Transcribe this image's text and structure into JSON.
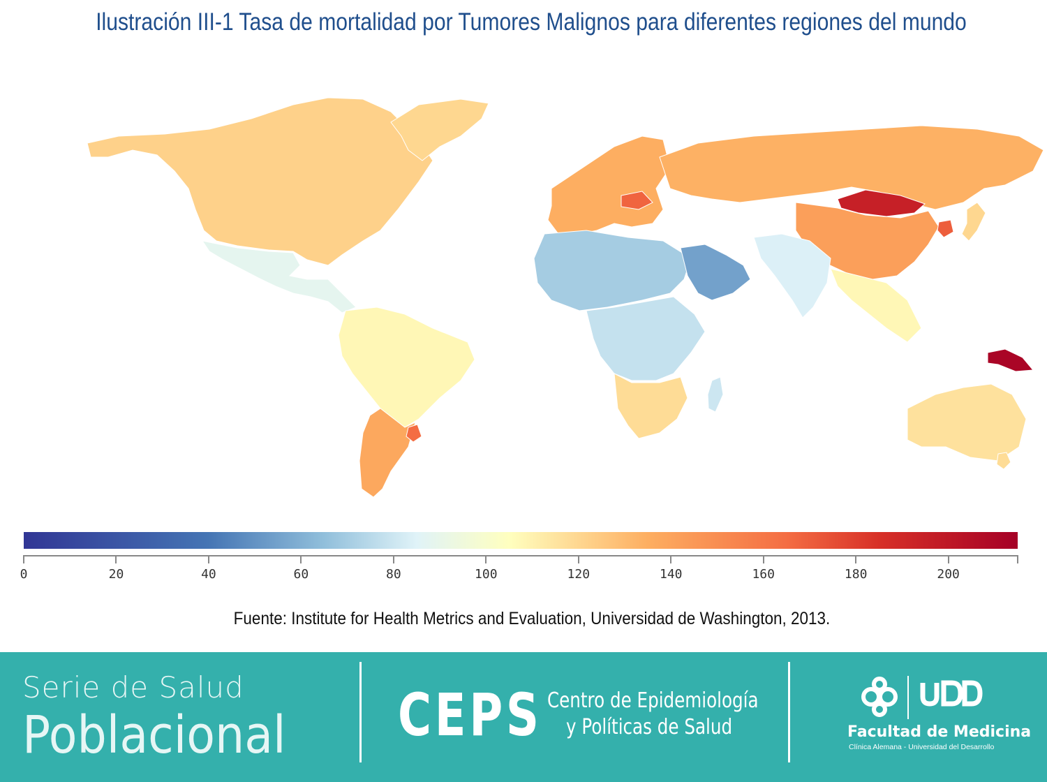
{
  "title": "Ilustración III-1 Tasa de mortalidad por Tumores Malignos para diferentes regiones del mundo",
  "source": "Fuente: Institute for Health Metrics and Evaluation, Universidad de Washington, 2013.",
  "legend": {
    "type": "continuous-colorbar",
    "min": 0,
    "max": 215,
    "ticks": [
      "0",
      "20",
      "40",
      "60",
      "80",
      "100",
      "120",
      "140",
      "160",
      "180",
      "200"
    ],
    "tick_values": [
      0,
      20,
      40,
      60,
      80,
      100,
      120,
      140,
      160,
      180,
      200
    ],
    "stops": [
      {
        "value": 0,
        "color": "#313695"
      },
      {
        "value": 40,
        "color": "#4575b4"
      },
      {
        "value": 65,
        "color": "#91bfdb"
      },
      {
        "value": 85,
        "color": "#e0f3f8"
      },
      {
        "value": 105,
        "color": "#ffffbf"
      },
      {
        "value": 135,
        "color": "#fdae61"
      },
      {
        "value": 165,
        "color": "#f46d43"
      },
      {
        "value": 185,
        "color": "#d73027"
      },
      {
        "value": 215,
        "color": "#a50026"
      }
    ]
  },
  "map": {
    "type": "choropleth-world",
    "regions": [
      {
        "id": "north-america",
        "value": 122
      },
      {
        "id": "greenland",
        "value": 120
      },
      {
        "id": "mexico-central-america",
        "value": 88
      },
      {
        "id": "south-america",
        "value": 108
      },
      {
        "id": "argentina",
        "value": 138
      },
      {
        "id": "uruguay",
        "value": 165
      },
      {
        "id": "europe",
        "value": 135
      },
      {
        "id": "hungary",
        "value": 168
      },
      {
        "id": "russia",
        "value": 134
      },
      {
        "id": "mongolia",
        "value": 195
      },
      {
        "id": "china",
        "value": 142
      },
      {
        "id": "korea",
        "value": 170
      },
      {
        "id": "north-africa",
        "value": 70
      },
      {
        "id": "arabia",
        "value": 55
      },
      {
        "id": "india",
        "value": 84
      },
      {
        "id": "southeast-asia",
        "value": 108
      },
      {
        "id": "central-africa",
        "value": 78
      },
      {
        "id": "southern-africa",
        "value": 118
      },
      {
        "id": "madagascar",
        "value": 80
      },
      {
        "id": "australia",
        "value": 116
      },
      {
        "id": "papua-new-guinea",
        "value": 212
      },
      {
        "id": "japan",
        "value": 120
      },
      {
        "id": "new-zealand",
        "value": 118
      }
    ]
  },
  "footer": {
    "serie_line1": "Serie de Salud",
    "serie_line2": "Poblacional",
    "ceps_acronym": "CEPS",
    "ceps_line1": "Centro de Epidemiología",
    "ceps_line2": "y Políticas de Salud",
    "udd_logo_text": "UDD",
    "facultad": "Facultad de Medicina",
    "facultad_sub": "Clínica Alemana - Universidad del Desarrollo",
    "background_color": "#34b0ac"
  }
}
